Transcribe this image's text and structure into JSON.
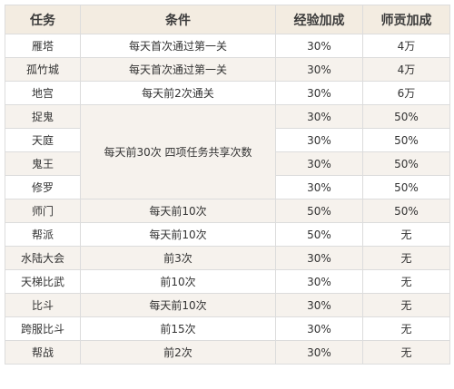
{
  "table": {
    "headers": [
      "任务",
      "条件",
      "经验加成",
      "师贡加成"
    ],
    "rows": [
      {
        "task": "雁塔",
        "condition": "每天首次通过第一关",
        "exp": "30%",
        "contrib": "4万"
      },
      {
        "task": "孤竹城",
        "condition": "每天首次通过第一关",
        "exp": "30%",
        "contrib": "4万"
      },
      {
        "task": "地宫",
        "condition": "每天前2次通关",
        "exp": "30%",
        "contrib": "6万"
      },
      {
        "task": "捉鬼",
        "condition": "每天前30次 四项任务共享次数",
        "exp": "30%",
        "contrib": "50%"
      },
      {
        "task": "天庭",
        "exp": "30%",
        "contrib": "50%"
      },
      {
        "task": "鬼王",
        "exp": "30%",
        "contrib": "50%"
      },
      {
        "task": "修罗",
        "exp": "30%",
        "contrib": "50%"
      },
      {
        "task": "师门",
        "condition": "每天前10次",
        "exp": "50%",
        "contrib": "50%"
      },
      {
        "task": "帮派",
        "condition": "每天前10次",
        "exp": "50%",
        "contrib": "无"
      },
      {
        "task": "水陆大会",
        "condition": "前3次",
        "exp": "30%",
        "contrib": "无"
      },
      {
        "task": "天梯比武",
        "condition": "前10次",
        "exp": "30%",
        "contrib": "无"
      },
      {
        "task": "比斗",
        "condition": "每天前10次",
        "exp": "30%",
        "contrib": "无"
      },
      {
        "task": "跨服比斗",
        "condition": "前15次",
        "exp": "30%",
        "contrib": "无"
      },
      {
        "task": "帮战",
        "condition": "前2次",
        "exp": "30%",
        "contrib": "无"
      }
    ]
  }
}
